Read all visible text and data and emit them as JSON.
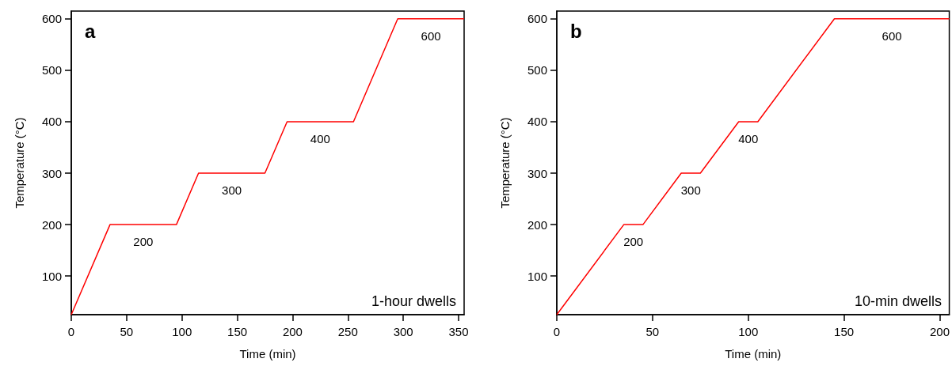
{
  "chart_data": [
    {
      "type": "line",
      "title": "a",
      "xlabel": "Time (min)",
      "ylabel": "Temperature (°C)",
      "xlim": [
        0,
        355
      ],
      "xticks": [
        0,
        50,
        100,
        150,
        200,
        250,
        300,
        350
      ],
      "ylim": [
        25,
        615
      ],
      "yticks": [
        100,
        200,
        300,
        400,
        500,
        600
      ],
      "grid": false,
      "marker": "none",
      "series": [
        {
          "color": "#ff0000",
          "x": [
            0,
            35,
            95,
            115,
            175,
            195,
            255,
            295,
            355
          ],
          "values": [
            25,
            200,
            200,
            300,
            300,
            400,
            400,
            600,
            600
          ]
        }
      ],
      "annotations": [
        {
          "text": "200",
          "x": 65,
          "y": 200
        },
        {
          "text": "300",
          "x": 145,
          "y": 300
        },
        {
          "text": "400",
          "x": 225,
          "y": 400
        },
        {
          "text": "600",
          "x": 325,
          "y": 600
        },
        "1-hour dwells"
      ]
    },
    {
      "type": "line",
      "title": "b",
      "xlabel": "Time (min)",
      "ylabel": "Temperature (°C)",
      "xlim": [
        0,
        205
      ],
      "xticks": [
        0,
        50,
        100,
        150,
        200
      ],
      "ylim": [
        25,
        615
      ],
      "yticks": [
        100,
        200,
        300,
        400,
        500,
        600
      ],
      "grid": false,
      "marker": "none",
      "series": [
        {
          "color": "#ff0000",
          "x": [
            0,
            35,
            45,
            65,
            75,
            95,
            105,
            145,
            205
          ],
          "values": [
            25,
            200,
            200,
            300,
            300,
            400,
            400,
            600,
            600
          ]
        }
      ],
      "annotations": [
        {
          "text": "200",
          "x": 40,
          "y": 200
        },
        {
          "text": "300",
          "x": 70,
          "y": 300
        },
        {
          "text": "400",
          "x": 100,
          "y": 400
        },
        {
          "text": "600",
          "x": 175,
          "y": 600
        },
        "10-min dwells"
      ]
    }
  ]
}
